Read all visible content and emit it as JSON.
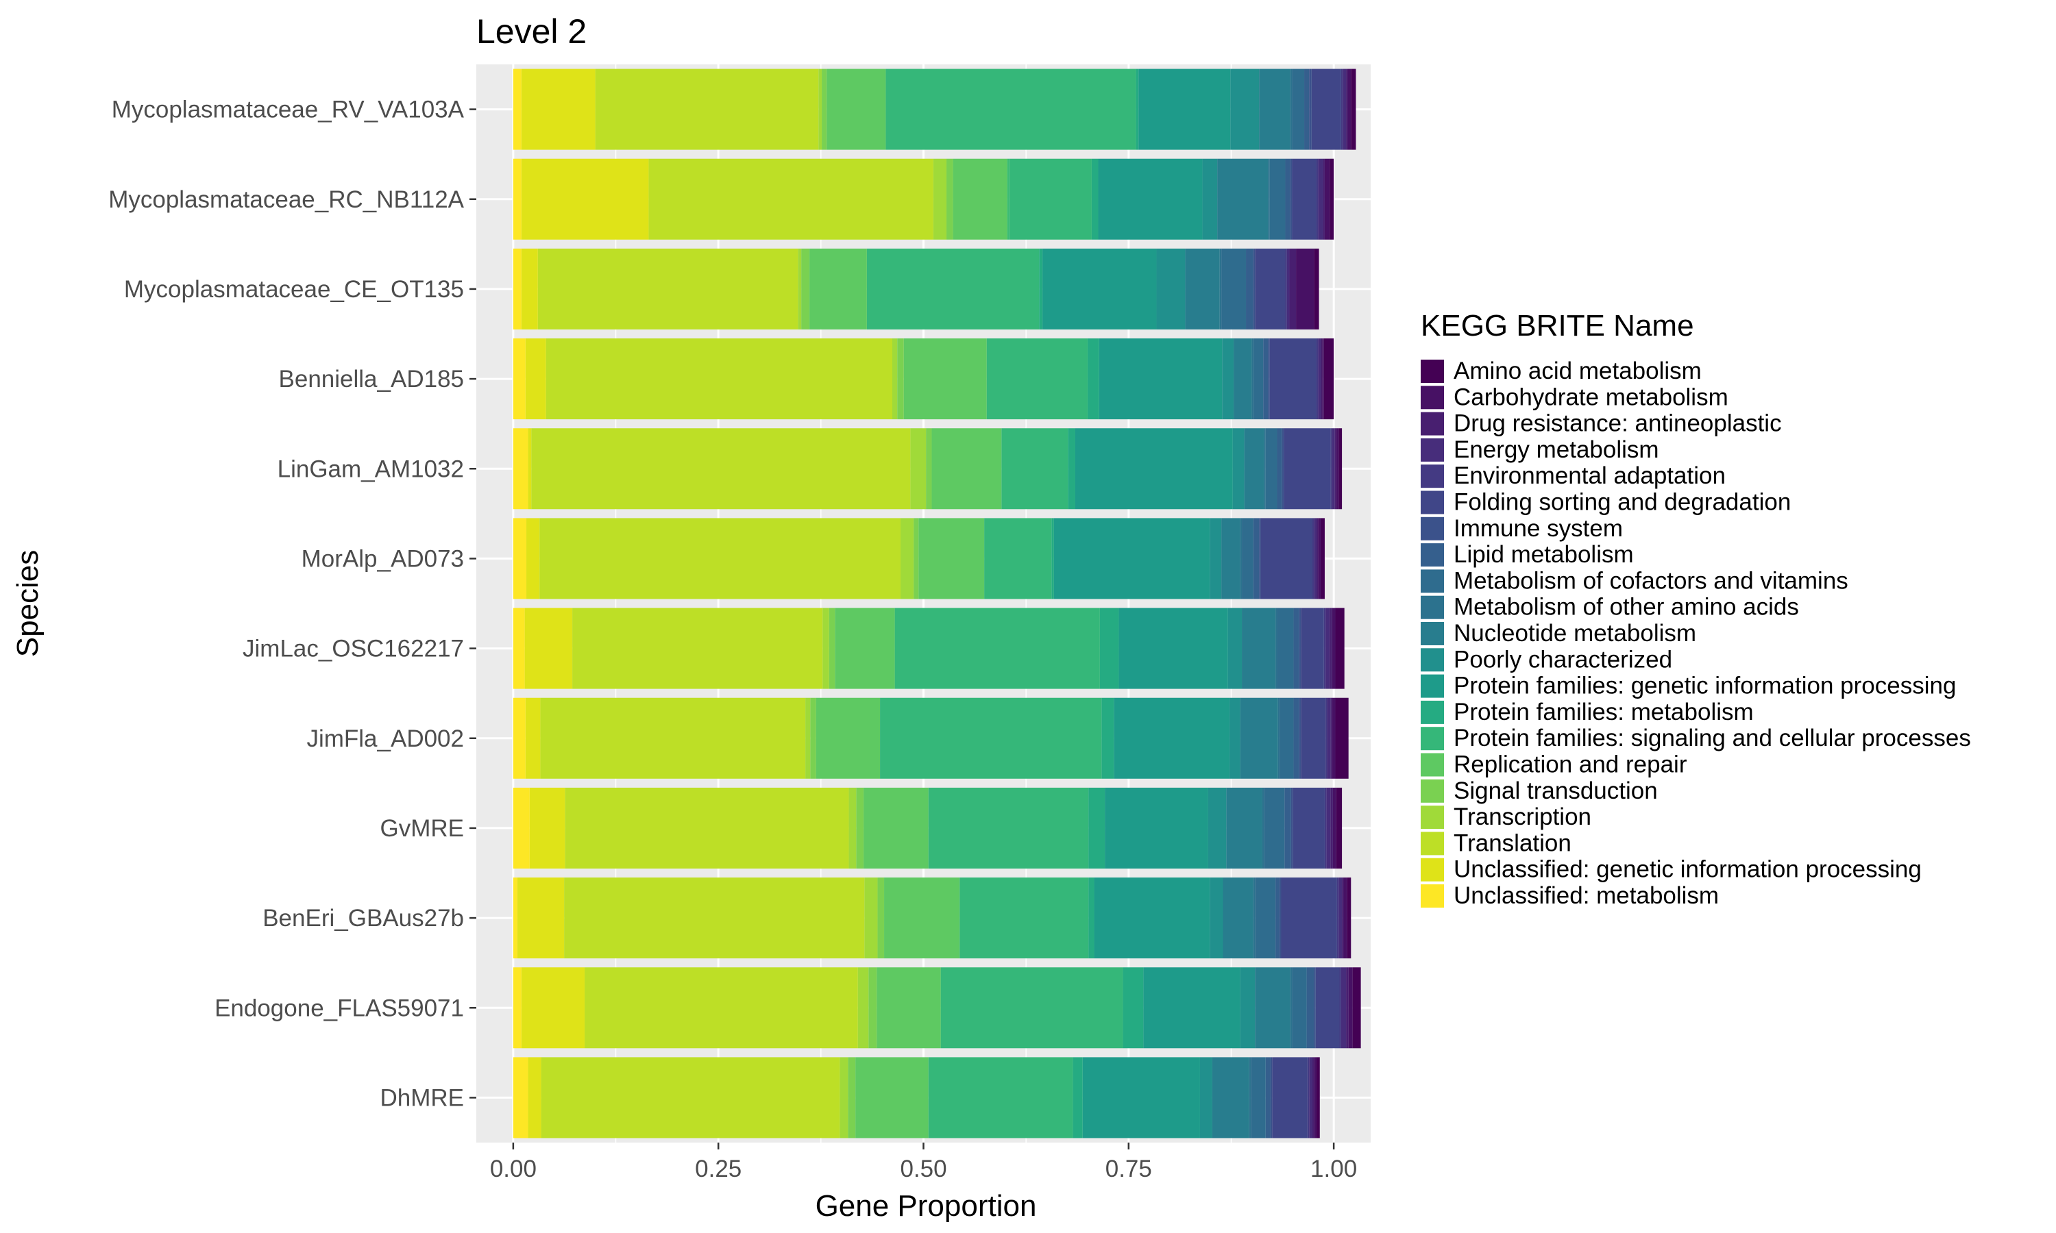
{
  "chart_data": {
    "type": "bar",
    "orientation": "horizontal",
    "stacked": true,
    "title": "Level 2",
    "xlabel": "Gene Proportion",
    "ylabel": "Species",
    "xlim": [
      0,
      1
    ],
    "xticks": [
      0,
      0.25,
      0.5,
      0.75,
      1
    ],
    "xtick_labels": [
      "0.00",
      "0.25",
      "0.50",
      "0.75",
      "1.00"
    ],
    "grid": true,
    "legend_title": "KEGG BRITE Name",
    "legend_position": "right",
    "categories": [
      "Mycoplasmataceae_RV_VA103A",
      "Mycoplasmataceae_RC_NB112A",
      "Mycoplasmataceae_CE_OT135",
      "Benniella_AD185",
      "LinGam_AM1032",
      "MorAlp_AD073",
      "JimLac_OSC162217",
      "JimFla_AD002",
      "GvMRE",
      "BenEri_GBAus27b",
      "Endogone_FLAS59071",
      "DhMRE"
    ],
    "series": [
      {
        "name": "Amino acid metabolism",
        "color": "#440154",
        "values": [
          0.006,
          0.005,
          0.006,
          0.012,
          0.004,
          0.005,
          0.011,
          0.016,
          0.007,
          0.005,
          0.01,
          0.004
        ]
      },
      {
        "name": "Carbohydrate metabolism",
        "color": "#471164",
        "values": [
          0.004,
          0.006,
          0.022,
          0.002,
          0.003,
          0.003,
          0.004,
          0.004,
          0.004,
          0.004,
          0.005,
          0.003
        ]
      },
      {
        "name": "Drug resistance: antineoplastic",
        "color": "#481f70",
        "values": [
          0.002,
          0.002,
          0.008,
          0.002,
          0.002,
          0.002,
          0.003,
          0.002,
          0.003,
          0.002,
          0.003,
          0.002
        ]
      },
      {
        "name": "Energy metabolism",
        "color": "#472d7b",
        "values": [
          0.004,
          0.006,
          0.003,
          0.003,
          0.003,
          0.003,
          0.005,
          0.004,
          0.005,
          0.004,
          0.006,
          0.004
        ]
      },
      {
        "name": "Environmental adaptation",
        "color": "#443a83",
        "values": [
          0.002,
          0.002,
          0.002,
          0.002,
          0.002,
          0.002,
          0.002,
          0.002,
          0.002,
          0.002,
          0.002,
          0.002
        ]
      },
      {
        "name": "Folding sorting and degradation",
        "color": "#404688",
        "values": [
          0.036,
          0.03,
          0.037,
          0.057,
          0.057,
          0.063,
          0.028,
          0.03,
          0.039,
          0.068,
          0.029,
          0.043
        ]
      },
      {
        "name": "Immune system",
        "color": "#3b528b",
        "values": [
          0.003,
          0.002,
          0.002,
          0.002,
          0.002,
          0.002,
          0.002,
          0.002,
          0.002,
          0.002,
          0.002,
          0.002
        ]
      },
      {
        "name": "Lipid metabolism",
        "color": "#355f8d",
        "values": [
          0.006,
          0.006,
          0.009,
          0.006,
          0.006,
          0.007,
          0.007,
          0.007,
          0.008,
          0.005,
          0.009,
          0.006
        ]
      },
      {
        "name": "Metabolism of cofactors and vitamins",
        "color": "#2f6c8e",
        "values": [
          0.015,
          0.019,
          0.03,
          0.012,
          0.014,
          0.014,
          0.02,
          0.017,
          0.025,
          0.025,
          0.018,
          0.018
        ]
      },
      {
        "name": "Metabolism of other amino acids",
        "color": "#2c728e",
        "values": [
          0.002,
          0.002,
          0.002,
          0.002,
          0.002,
          0.002,
          0.002,
          0.002,
          0.002,
          0.002,
          0.002,
          0.002
        ]
      },
      {
        "name": "Nucleotide metabolism",
        "color": "#287d8e",
        "values": [
          0.038,
          0.062,
          0.042,
          0.022,
          0.024,
          0.023,
          0.041,
          0.046,
          0.044,
          0.037,
          0.043,
          0.045
        ]
      },
      {
        "name": "Poorly characterized",
        "color": "#21908d",
        "values": [
          0.035,
          0.018,
          0.035,
          0.014,
          0.014,
          0.014,
          0.017,
          0.013,
          0.022,
          0.016,
          0.018,
          0.015
        ]
      },
      {
        "name": "Protein families: genetic information processing",
        "color": "#1e9b8a",
        "values": [
          0.112,
          0.127,
          0.139,
          0.15,
          0.192,
          0.19,
          0.133,
          0.141,
          0.126,
          0.141,
          0.118,
          0.143
        ]
      },
      {
        "name": "Protein families: metabolism",
        "color": "#25ab82",
        "values": [
          0.003,
          0.008,
          0.004,
          0.014,
          0.009,
          0.003,
          0.023,
          0.015,
          0.02,
          0.007,
          0.025,
          0.012
        ]
      },
      {
        "name": "Protein families: signaling and cellular processes",
        "color": "#35b779",
        "values": [
          0.305,
          0.1,
          0.21,
          0.123,
          0.081,
          0.082,
          0.25,
          0.27,
          0.195,
          0.157,
          0.222,
          0.176
        ]
      },
      {
        "name": "Protein families: signaling and cellular processes",
        "color": "#3dbc74",
        "values": [
          0.0,
          0.003,
          0.0,
          0.0,
          0.0,
          0.0,
          0.0,
          0.0,
          0.0,
          0.0,
          0.0,
          0.0
        ]
      },
      {
        "name": "Replication and repair",
        "color": "#5ec962",
        "values": [
          0.072,
          0.066,
          0.07,
          0.101,
          0.085,
          0.08,
          0.073,
          0.078,
          0.079,
          0.092,
          0.078,
          0.089
        ]
      },
      {
        "name": "Signal transduction",
        "color": "#7ad151",
        "values": [
          0.006,
          0.008,
          0.01,
          0.008,
          0.007,
          0.006,
          0.007,
          0.007,
          0.009,
          0.008,
          0.01,
          0.009
        ]
      },
      {
        "name": "Transcription",
        "color": "#a0da39",
        "values": [
          0.004,
          0.016,
          0.004,
          0.006,
          0.019,
          0.016,
          0.008,
          0.006,
          0.009,
          0.016,
          0.013,
          0.01
        ]
      },
      {
        "name": "Translation",
        "color": "#bddf26",
        "values": [
          0.272,
          0.347,
          0.317,
          0.422,
          0.462,
          0.44,
          0.305,
          0.323,
          0.346,
          0.366,
          0.333,
          0.364
        ]
      },
      {
        "name": "Unclassified: genetic information processing",
        "color": "#dfe318",
        "values": [
          0.09,
          0.155,
          0.02,
          0.025,
          0.004,
          0.016,
          0.058,
          0.018,
          0.043,
          0.057,
          0.077,
          0.016
        ]
      },
      {
        "name": "Unclassified: metabolism",
        "color": "#fde725",
        "values": [
          0.01,
          0.01,
          0.01,
          0.015,
          0.018,
          0.016,
          0.014,
          0.015,
          0.02,
          0.005,
          0.01,
          0.018
        ]
      }
    ]
  }
}
